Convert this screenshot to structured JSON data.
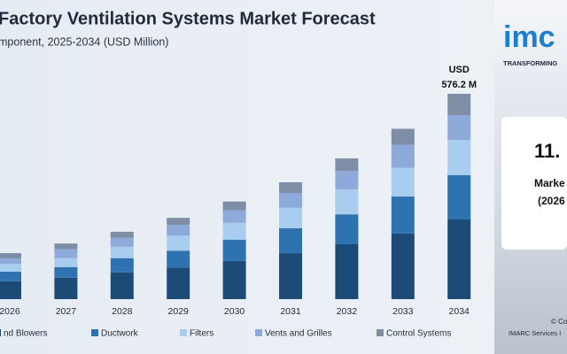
{
  "chart_data": {
    "type": "stacked_bar",
    "title": "Factory Ventilation Systems Market Forecast",
    "subtitle": "mponent, 2025-2034 (USD Million)",
    "categories": [
      "2026",
      "2027",
      "2028",
      "2029",
      "2030",
      "2031",
      "2032",
      "2033",
      "2034"
    ],
    "series": [
      {
        "name": "nd Blowers",
        "color": "#1d4b78",
        "values": [
          50,
          60,
          75,
          89,
          107,
          129,
          154,
          184,
          223.5
        ]
      },
      {
        "name": "Ductwork",
        "color": "#2e72b2",
        "values": [
          27,
          30,
          40,
          47,
          60,
          70,
          84,
          104,
          124.2
        ]
      },
      {
        "name": "Filters",
        "color": "#a9cdee",
        "values": [
          22,
          25,
          32,
          42,
          47,
          57,
          70,
          80,
          99.3
        ]
      },
      {
        "name": "Vents and Grilles",
        "color": "#8eaadb",
        "values": [
          15,
          25,
          25,
          30,
          35,
          42,
          52,
          65,
          69.5
        ]
      },
      {
        "name": "Control Systems",
        "color": "#7d8ea6",
        "values": [
          15,
          16,
          17,
          20,
          25,
          30,
          35,
          45,
          59.7
        ]
      }
    ],
    "annotation_lines": [
      "USD",
      "576.2 M"
    ]
  },
  "branding": {
    "logo": "imc",
    "tagline": "TRANSFORMING",
    "card_lines": [
      "11.",
      "Marke",
      "(2026"
    ],
    "footer_lines": [
      "© Co",
      "IMARC Services I"
    ]
  }
}
